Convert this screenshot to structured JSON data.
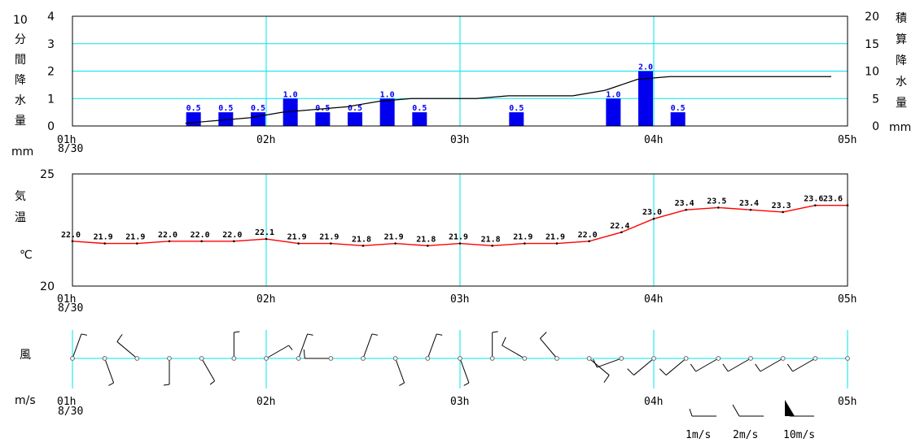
{
  "chart_data": [
    {
      "type": "bar",
      "title": "",
      "ylabel": "10分間降水量",
      "ylabel_unit": "mm",
      "y2label": "積算降水量",
      "y2label_unit": "mm",
      "ylim": [
        0,
        4
      ],
      "y2lim": [
        0,
        20
      ],
      "yticks": [
        "0",
        "1",
        "2",
        "3",
        "4"
      ],
      "y2ticks": [
        "0",
        "5",
        "10",
        "15",
        "20"
      ],
      "x_ticks": [
        "01h",
        "02h",
        "03h",
        "04h",
        "05h"
      ],
      "x_date": "8/30",
      "x_time_range": [
        "01:00",
        "05:00"
      ],
      "bars": [
        {
          "time": "01:40",
          "value": 0.5,
          "label": "0.5"
        },
        {
          "time": "01:50",
          "value": 0.5,
          "label": "0.5"
        },
        {
          "time": "02:00",
          "value": 0.5,
          "label": "0.5"
        },
        {
          "time": "02:10",
          "value": 1.0,
          "label": "1.0"
        },
        {
          "time": "02:20",
          "value": 0.5,
          "label": "0.5"
        },
        {
          "time": "02:30",
          "value": 0.5,
          "label": "0.5"
        },
        {
          "time": "02:40",
          "value": 1.0,
          "label": "1.0"
        },
        {
          "time": "02:50",
          "value": 0.5,
          "label": "0.5"
        },
        {
          "time": "03:20",
          "value": 0.5,
          "label": "0.5"
        },
        {
          "time": "03:50",
          "value": 1.0,
          "label": "1.0"
        },
        {
          "time": "04:00",
          "value": 2.0,
          "label": "2.0"
        },
        {
          "time": "04:10",
          "value": 0.5,
          "label": "0.5"
        }
      ],
      "cumulative": [
        {
          "time": "01:40",
          "value": 0.5
        },
        {
          "time": "01:50",
          "value": 1.0
        },
        {
          "time": "02:00",
          "value": 1.5
        },
        {
          "time": "02:10",
          "value": 2.5
        },
        {
          "time": "02:20",
          "value": 3.0
        },
        {
          "time": "02:30",
          "value": 3.5
        },
        {
          "time": "02:40",
          "value": 4.5
        },
        {
          "time": "02:50",
          "value": 5.0
        },
        {
          "time": "03:00",
          "value": 5.0
        },
        {
          "time": "03:10",
          "value": 5.0
        },
        {
          "time": "03:20",
          "value": 5.5
        },
        {
          "time": "03:30",
          "value": 5.5
        },
        {
          "time": "03:40",
          "value": 5.5
        },
        {
          "time": "03:50",
          "value": 6.5
        },
        {
          "time": "04:00",
          "value": 8.5
        },
        {
          "time": "04:10",
          "value": 9.0
        },
        {
          "time": "04:20",
          "value": 9.0
        },
        {
          "time": "04:30",
          "value": 9.0
        },
        {
          "time": "04:40",
          "value": 9.0
        },
        {
          "time": "04:50",
          "value": 9.0
        },
        {
          "time": "05:00",
          "value": 9.0
        }
      ],
      "colors": {
        "bar": "#0000ee",
        "bar_label": "#0000ee",
        "cumulative": "#000000",
        "grid": "#00e5ee"
      }
    },
    {
      "type": "line",
      "title": "",
      "ylabel": "気温",
      "ylabel_unit": "℃",
      "ylim": [
        20,
        25
      ],
      "yticks": [
        "20",
        "25"
      ],
      "x_ticks": [
        "01h",
        "02h",
        "03h",
        "04h",
        "05h"
      ],
      "x_date": "8/30",
      "x_time_range": [
        "01:00",
        "05:00"
      ],
      "points": [
        {
          "time": "01:00",
          "value": 22.0,
          "label": "22.0"
        },
        {
          "time": "01:10",
          "value": 21.9,
          "label": "21.9"
        },
        {
          "time": "01:20",
          "value": 21.9,
          "label": "21.9"
        },
        {
          "time": "01:30",
          "value": 22.0,
          "label": "22.0"
        },
        {
          "time": "01:40",
          "value": 22.0,
          "label": "22.0"
        },
        {
          "time": "01:50",
          "value": 22.0,
          "label": "22.0"
        },
        {
          "time": "02:00",
          "value": 22.1,
          "label": "22.1"
        },
        {
          "time": "02:10",
          "value": 21.9,
          "label": "21.9"
        },
        {
          "time": "02:20",
          "value": 21.9,
          "label": "21.9"
        },
        {
          "time": "02:30",
          "value": 21.8,
          "label": "21.8"
        },
        {
          "time": "02:40",
          "value": 21.9,
          "label": "21.9"
        },
        {
          "time": "02:50",
          "value": 21.8,
          "label": "21.8"
        },
        {
          "time": "03:00",
          "value": 21.9,
          "label": "21.9"
        },
        {
          "time": "03:10",
          "value": 21.8,
          "label": "21.8"
        },
        {
          "time": "03:20",
          "value": 21.9,
          "label": "21.9"
        },
        {
          "time": "03:30",
          "value": 21.9,
          "label": "21.9"
        },
        {
          "time": "03:40",
          "value": 22.0,
          "label": "22.0"
        },
        {
          "time": "03:50",
          "value": 22.4,
          "label": "22.4"
        },
        {
          "time": "04:00",
          "value": 23.0,
          "label": "23.0"
        },
        {
          "time": "04:10",
          "value": 23.4,
          "label": "23.4"
        },
        {
          "time": "04:20",
          "value": 23.5,
          "label": "23.5"
        },
        {
          "time": "04:30",
          "value": 23.4,
          "label": "23.4"
        },
        {
          "time": "04:40",
          "value": 23.3,
          "label": "23.3"
        },
        {
          "time": "04:50",
          "value": 23.6,
          "label": "23.6"
        },
        {
          "time": "05:00",
          "value": 23.6,
          "label": "23.6"
        }
      ],
      "colors": {
        "line": "#ff0000",
        "grid": "#00e5ee"
      }
    },
    {
      "type": "wind_barbs",
      "title": "",
      "ylabel": "風",
      "ylabel_unit": "m/s",
      "x_ticks": [
        "01h",
        "02h",
        "03h",
        "04h",
        "05h"
      ],
      "x_date": "8/30",
      "x_time_range": [
        "01:00",
        "05:00"
      ],
      "barbs": [
        {
          "time": "01:00",
          "dir_deg": 20,
          "speed": 1
        },
        {
          "time": "01:10",
          "dir_deg": 160,
          "speed": 1
        },
        {
          "time": "01:20",
          "dir_deg": 310,
          "speed": 2
        },
        {
          "time": "01:30",
          "dir_deg": 180,
          "speed": 1
        },
        {
          "time": "01:40",
          "dir_deg": 150,
          "speed": 1
        },
        {
          "time": "01:50",
          "dir_deg": 0,
          "speed": 1
        },
        {
          "time": "02:00",
          "dir_deg": 60,
          "speed": 1
        },
        {
          "time": "02:10",
          "dir_deg": 20,
          "speed": 1
        },
        {
          "time": "02:20",
          "dir_deg": 270,
          "speed": 2
        },
        {
          "time": "02:30",
          "dir_deg": 20,
          "speed": 1
        },
        {
          "time": "02:40",
          "dir_deg": 160,
          "speed": 1
        },
        {
          "time": "02:50",
          "dir_deg": 20,
          "speed": 1
        },
        {
          "time": "03:00",
          "dir_deg": 160,
          "speed": 1
        },
        {
          "time": "03:10",
          "dir_deg": 0,
          "speed": 1
        },
        {
          "time": "03:20",
          "dir_deg": 300,
          "speed": 2
        },
        {
          "time": "03:30",
          "dir_deg": 320,
          "speed": 2
        },
        {
          "time": "03:40",
          "dir_deg": 130,
          "speed": 2
        },
        {
          "time": "03:50",
          "dir_deg": 250,
          "speed": 2
        },
        {
          "time": "04:00",
          "dir_deg": 230,
          "speed": 2
        },
        {
          "time": "04:10",
          "dir_deg": 230,
          "speed": 2
        },
        {
          "time": "04:20",
          "dir_deg": 240,
          "speed": 2
        },
        {
          "time": "04:30",
          "dir_deg": 240,
          "speed": 2
        },
        {
          "time": "04:40",
          "dir_deg": 240,
          "speed": 2
        },
        {
          "time": "04:50",
          "dir_deg": 240,
          "speed": 2
        }
      ],
      "legend": [
        {
          "speed": 1,
          "label": "1m/s"
        },
        {
          "speed": 2,
          "label": "2m/s"
        },
        {
          "speed": 10,
          "label": "10m/s"
        }
      ],
      "colors": {
        "barb": "#000000",
        "grid": "#00e5ee"
      }
    }
  ]
}
